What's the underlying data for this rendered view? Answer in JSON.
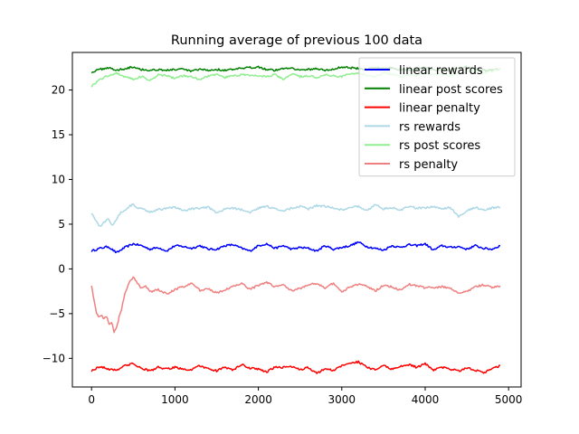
{
  "chart_data": {
    "type": "line",
    "title": "Running average of previous 100 data",
    "xlabel": "",
    "ylabel": "",
    "xlim": [
      -230,
      5150
    ],
    "ylim": [
      -13.2,
      24.2
    ],
    "xticks": [
      0,
      1000,
      2000,
      3000,
      4000,
      5000
    ],
    "xtick_labels": [
      "0",
      "1000",
      "2000",
      "3000",
      "4000",
      "5000"
    ],
    "yticks": [
      -10,
      -5,
      0,
      5,
      10,
      15,
      20
    ],
    "ytick_labels": [
      "−10",
      "−5",
      "0",
      "5",
      "10",
      "15",
      "20"
    ],
    "grid": false,
    "legend_position": "upper right",
    "series": [
      {
        "name": "linear rewards",
        "color": "#0000ff",
        "x": [
          0,
          100,
          200,
          300,
          400,
          500,
          600,
          700,
          800,
          900,
          1000,
          1100,
          1200,
          1300,
          1400,
          1500,
          1600,
          1700,
          1800,
          1900,
          2000,
          2100,
          2200,
          2300,
          2400,
          2500,
          2600,
          2700,
          2800,
          2900,
          3000,
          3100,
          3200,
          3300,
          3400,
          3500,
          3600,
          3700,
          3800,
          3900,
          4000,
          4100,
          4200,
          4300,
          4400,
          4500,
          4600,
          4700,
          4800,
          4900
        ],
        "y": [
          2.0,
          2.3,
          2.5,
          1.8,
          2.4,
          2.8,
          2.6,
          2.2,
          2.4,
          2.0,
          2.6,
          2.5,
          2.3,
          2.6,
          2.2,
          2.2,
          2.6,
          2.7,
          2.3,
          2.0,
          2.6,
          2.8,
          2.3,
          2.6,
          2.2,
          2.4,
          2.3,
          2.0,
          2.6,
          2.2,
          2.4,
          2.6,
          3.0,
          2.5,
          2.3,
          2.1,
          2.6,
          2.4,
          2.7,
          2.6,
          2.8,
          2.1,
          2.6,
          2.4,
          2.5,
          2.2,
          2.6,
          2.3,
          2.2,
          2.6
        ]
      },
      {
        "name": "linear post scores",
        "color": "#008000",
        "x": [
          0,
          100,
          200,
          300,
          400,
          500,
          600,
          700,
          800,
          900,
          1000,
          1100,
          1200,
          1300,
          1400,
          1500,
          1600,
          1700,
          1800,
          1900,
          2000,
          2100,
          2200,
          2300,
          2400,
          2500,
          2600,
          2700,
          2800,
          2900,
          3000,
          3100,
          3200,
          3300,
          3400,
          3500,
          3600,
          3700,
          3800,
          3900,
          4000,
          4100,
          4200,
          4300,
          4400,
          4500,
          4600,
          4700,
          4800,
          4900
        ],
        "y": [
          22.0,
          22.3,
          22.5,
          22.2,
          22.4,
          22.6,
          22.3,
          22.2,
          22.3,
          22.2,
          22.3,
          22.3,
          22.1,
          22.3,
          22.2,
          22.3,
          22.2,
          22.3,
          22.4,
          22.5,
          22.6,
          22.3,
          22.2,
          22.4,
          22.5,
          22.2,
          22.3,
          22.4,
          22.2,
          22.3,
          22.6,
          22.5,
          22.4,
          22.3,
          22.5,
          22.4,
          22.5,
          22.3,
          22.2,
          22.4,
          22.5,
          22.2,
          22.3,
          22.1,
          22.5,
          22.6,
          22.3,
          22.2,
          22.2,
          22.4
        ]
      },
      {
        "name": "linear penalty",
        "color": "#ff0000",
        "x": [
          0,
          100,
          200,
          300,
          400,
          500,
          600,
          700,
          800,
          900,
          1000,
          1100,
          1200,
          1300,
          1400,
          1500,
          1600,
          1700,
          1800,
          1900,
          2000,
          2100,
          2200,
          2300,
          2400,
          2500,
          2600,
          2700,
          2800,
          2900,
          3000,
          3100,
          3200,
          3300,
          3400,
          3500,
          3600,
          3700,
          3800,
          3900,
          4000,
          4100,
          4200,
          4300,
          4400,
          4500,
          4600,
          4700,
          4800,
          4900
        ],
        "y": [
          -11.4,
          -10.9,
          -11.2,
          -11.3,
          -10.8,
          -10.6,
          -11.1,
          -11.4,
          -11.0,
          -11.2,
          -11.0,
          -11.2,
          -11.3,
          -10.8,
          -11.2,
          -11.4,
          -11.0,
          -11.3,
          -10.7,
          -11.1,
          -11.2,
          -11.5,
          -11.0,
          -11.0,
          -10.9,
          -11.3,
          -11.0,
          -11.7,
          -11.1,
          -11.4,
          -10.8,
          -10.5,
          -10.4,
          -11.0,
          -11.3,
          -10.8,
          -11.2,
          -10.9,
          -10.7,
          -11.0,
          -10.6,
          -11.3,
          -11.0,
          -11.2,
          -11.4,
          -11.1,
          -11.3,
          -11.6,
          -11.2,
          -10.8
        ]
      },
      {
        "name": "rs rewards",
        "color": "#add8e6",
        "x": [
          0,
          50,
          100,
          150,
          200,
          250,
          300,
          350,
          400,
          450,
          500,
          550,
          600,
          700,
          800,
          900,
          1000,
          1100,
          1200,
          1300,
          1400,
          1500,
          1600,
          1700,
          1800,
          1900,
          2000,
          2100,
          2200,
          2300,
          2400,
          2500,
          2600,
          2700,
          2800,
          2900,
          3000,
          3100,
          3200,
          3300,
          3400,
          3500,
          3600,
          3700,
          3800,
          3900,
          4000,
          4100,
          4200,
          4300,
          4400,
          4500,
          4600,
          4700,
          4800,
          4900
        ],
        "y": [
          6.3,
          5.4,
          4.7,
          5.2,
          5.6,
          4.9,
          5.6,
          6.3,
          6.6,
          7.0,
          7.2,
          6.8,
          6.7,
          6.4,
          6.6,
          6.8,
          6.9,
          6.5,
          6.7,
          6.8,
          6.9,
          6.2,
          6.7,
          6.8,
          6.6,
          6.3,
          6.8,
          7.0,
          6.7,
          6.5,
          6.8,
          7.0,
          6.7,
          7.1,
          7.0,
          6.8,
          6.6,
          6.9,
          7.0,
          6.5,
          7.2,
          6.7,
          6.9,
          6.5,
          7.0,
          6.8,
          6.8,
          7.0,
          6.7,
          6.9,
          5.8,
          6.5,
          6.9,
          6.6,
          6.8,
          6.9
        ]
      },
      {
        "name": "rs post scores",
        "color": "#90ee90",
        "x": [
          0,
          100,
          200,
          300,
          400,
          500,
          600,
          700,
          800,
          900,
          1000,
          1100,
          1200,
          1300,
          1400,
          1500,
          1600,
          1700,
          1800,
          1900,
          2000,
          2100,
          2200,
          2300,
          2400,
          2500,
          2600,
          2700,
          2800,
          2900,
          3000,
          3100,
          3200,
          3300,
          3400,
          3500,
          3600,
          3700,
          3800,
          3900,
          4000,
          4100,
          4200,
          4300,
          4400,
          4500,
          4600,
          4700,
          4800,
          4900
        ],
        "y": [
          20.4,
          21.2,
          21.6,
          21.9,
          21.5,
          21.2,
          21.5,
          21.1,
          21.7,
          21.6,
          21.3,
          21.6,
          21.5,
          21.2,
          21.6,
          21.7,
          21.4,
          21.6,
          21.7,
          21.6,
          21.6,
          21.5,
          21.7,
          21.2,
          21.8,
          21.5,
          21.6,
          21.4,
          21.7,
          21.6,
          21.5,
          21.8,
          21.9,
          21.6,
          21.5,
          21.9,
          21.8,
          21.5,
          21.7,
          21.6,
          21.9,
          21.7,
          21.8,
          21.6,
          21.9,
          22.0,
          22.2,
          21.9,
          22.1,
          22.3
        ]
      },
      {
        "name": "rs penalty",
        "color": "#f08080",
        "x": [
          0,
          30,
          60,
          90,
          120,
          150,
          180,
          210,
          240,
          270,
          300,
          330,
          360,
          400,
          450,
          500,
          550,
          600,
          650,
          700,
          800,
          900,
          1000,
          1100,
          1200,
          1300,
          1400,
          1500,
          1600,
          1700,
          1800,
          1900,
          2000,
          2100,
          2200,
          2300,
          2400,
          2500,
          2600,
          2700,
          2800,
          2900,
          3000,
          3100,
          3200,
          3300,
          3400,
          3500,
          3600,
          3700,
          3800,
          3900,
          4000,
          4100,
          4200,
          4300,
          4400,
          4500,
          4600,
          4700,
          4800,
          4900
        ],
        "y": [
          -1.8,
          -3.5,
          -5.0,
          -5.4,
          -5.2,
          -5.6,
          -5.3,
          -6.1,
          -6.0,
          -7.0,
          -6.6,
          -5.4,
          -4.5,
          -2.8,
          -1.5,
          -0.9,
          -1.6,
          -2.2,
          -1.9,
          -2.6,
          -2.3,
          -2.8,
          -2.3,
          -2.0,
          -1.6,
          -2.4,
          -2.2,
          -2.7,
          -2.4,
          -1.9,
          -1.6,
          -2.3,
          -1.8,
          -1.5,
          -2.0,
          -1.8,
          -2.4,
          -2.2,
          -1.8,
          -1.6,
          -2.1,
          -1.6,
          -2.6,
          -2.0,
          -1.7,
          -1.9,
          -2.5,
          -1.8,
          -2.0,
          -2.4,
          -1.7,
          -1.9,
          -2.1,
          -2.1,
          -2.0,
          -2.1,
          -2.8,
          -2.5,
          -2.0,
          -1.8,
          -2.1,
          -1.9
        ]
      }
    ]
  }
}
